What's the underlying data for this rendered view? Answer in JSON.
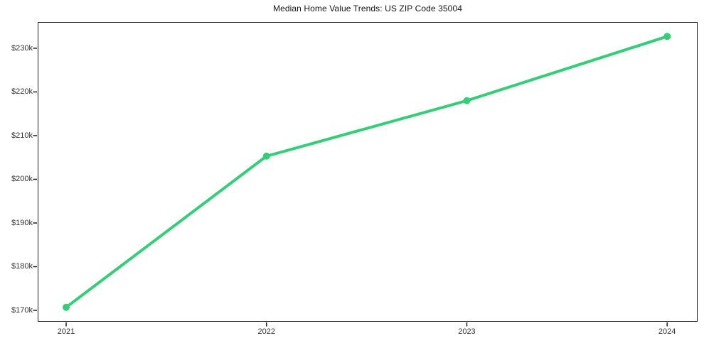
{
  "chart_data": {
    "type": "line",
    "title": "Median Home Value Trends: US ZIP Code 35004",
    "x": [
      2021,
      2022,
      2023,
      2024
    ],
    "categories": [
      "2021",
      "2022",
      "2023",
      "2024"
    ],
    "values": [
      170700,
      205300,
      218000,
      232700
    ],
    "xlabel": "",
    "ylabel": "",
    "xlim": [
      2020.858,
      2024.152
    ],
    "ylim": [
      167400,
      236000
    ],
    "x_ticks": [
      {
        "value": 2021,
        "label": "2021"
      },
      {
        "value": 2022,
        "label": "2022"
      },
      {
        "value": 2023,
        "label": "2023"
      },
      {
        "value": 2024,
        "label": "2024"
      }
    ],
    "y_ticks": [
      {
        "value": 230000,
        "label": "$230k"
      },
      {
        "value": 220000,
        "label": "$220k"
      },
      {
        "value": 210000,
        "label": "$210k"
      },
      {
        "value": 200000,
        "label": "$200k"
      },
      {
        "value": 190000,
        "label": "$190k"
      },
      {
        "value": 180000,
        "label": "$180k"
      },
      {
        "value": 170000,
        "label": "$170k"
      }
    ],
    "grid": false,
    "legend": false,
    "marker": "circle",
    "line_color": "#34cd78"
  },
  "colors": {
    "background": "#ffffff",
    "accent_line": "#34cd78",
    "axis_spine": "#1c1c26",
    "tick_text": "#333333",
    "title_text": "#141414"
  }
}
